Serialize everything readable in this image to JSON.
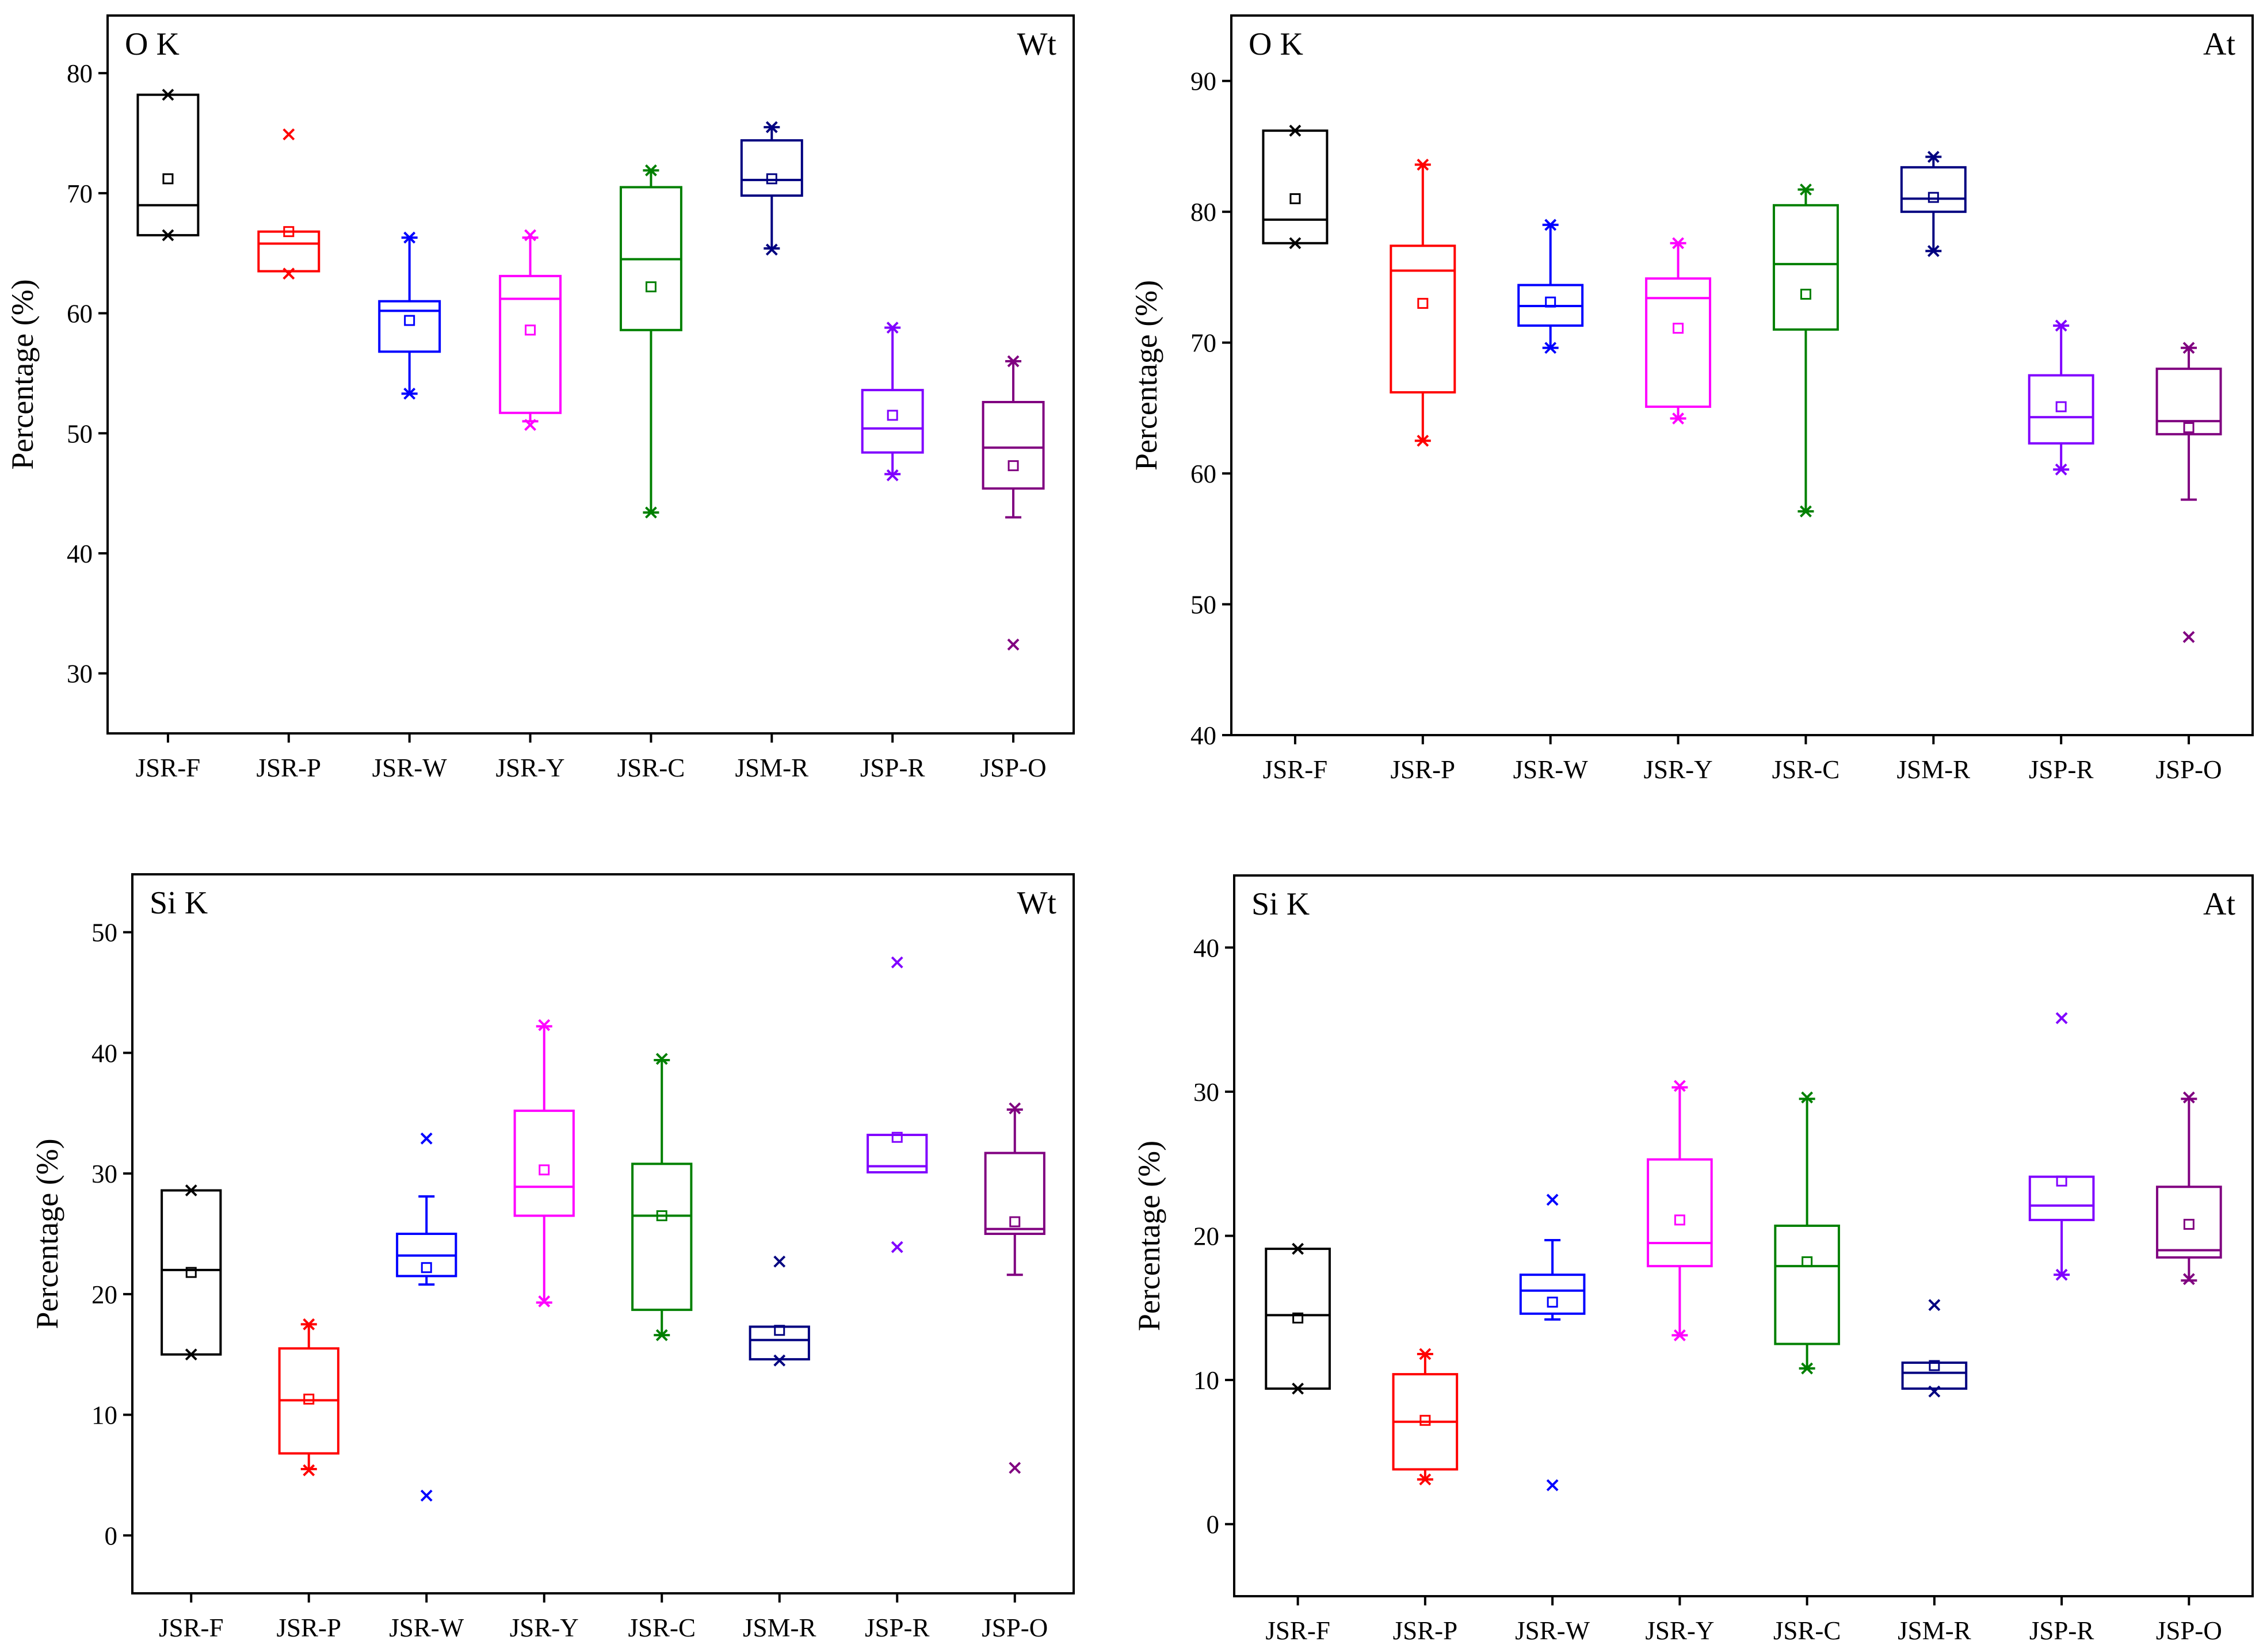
{
  "chart_data": [
    {
      "type": "box",
      "panel_label": "O K",
      "mode_label": "Wt",
      "ylabel": "Percentage (%)",
      "ylim": [
        25,
        84.8
      ],
      "yticks": [
        30,
        40,
        50,
        60,
        70,
        80
      ],
      "categories": [
        "JSR-F",
        "JSR-P",
        "JSR-W",
        "JSR-Y",
        "JSR-C",
        "JSM-R",
        "JSP-R",
        "JSP-O"
      ],
      "colors": [
        "#000000",
        "#ff0000",
        "#0000ff",
        "#ff00ff",
        "#008000",
        "#000080",
        "#8000ff",
        "#800080"
      ],
      "boxes": [
        {
          "q1": 66.5,
          "median": 69.0,
          "q3": 78.2,
          "whisker_low": null,
          "whisker_high": null,
          "mean": 71.2,
          "outliers": [
            78.2,
            66.5
          ]
        },
        {
          "q1": 63.5,
          "median": 65.8,
          "q3": 66.8,
          "whisker_low": null,
          "whisker_high": null,
          "mean": 66.8,
          "outliers": [
            74.9,
            63.3
          ]
        },
        {
          "q1": 56.8,
          "median": 60.2,
          "q3": 61.0,
          "whisker_low": 53.3,
          "whisker_high": 66.3,
          "mean": 59.4,
          "outliers": [
            66.3,
            53.3
          ]
        },
        {
          "q1": 51.7,
          "median": 61.2,
          "q3": 63.1,
          "whisker_low": 51.0,
          "whisker_high": 66.3,
          "mean": 58.6,
          "outliers": [
            66.5,
            50.7
          ]
        },
        {
          "q1": 58.6,
          "median": 64.5,
          "q3": 70.5,
          "whisker_low": 43.4,
          "whisker_high": 71.9,
          "mean": 62.2,
          "outliers": [
            71.9,
            43.4
          ]
        },
        {
          "q1": 69.8,
          "median": 71.1,
          "q3": 74.4,
          "whisker_low": 65.4,
          "whisker_high": 75.5,
          "mean": 71.2,
          "outliers": [
            75.5,
            65.3
          ]
        },
        {
          "q1": 48.4,
          "median": 50.4,
          "q3": 53.6,
          "whisker_low": 46.6,
          "whisker_high": 58.8,
          "mean": 51.5,
          "outliers": [
            58.8,
            46.5
          ]
        },
        {
          "q1": 45.4,
          "median": 48.8,
          "q3": 52.6,
          "whisker_low": 43.0,
          "whisker_high": 56.0,
          "mean": 47.3,
          "outliers": [
            56.0,
            32.4
          ]
        }
      ]
    },
    {
      "type": "box",
      "panel_label": "O K",
      "mode_label": "At",
      "ylabel": "Percentage (%)",
      "ylim": [
        40,
        95
      ],
      "yticks": [
        40,
        50,
        60,
        70,
        80,
        90
      ],
      "categories": [
        "JSR-F",
        "JSR-P",
        "JSR-W",
        "JSR-Y",
        "JSR-C",
        "JSM-R",
        "JSP-R",
        "JSP-O"
      ],
      "colors": [
        "#000000",
        "#ff0000",
        "#0000ff",
        "#ff00ff",
        "#008000",
        "#000080",
        "#8000ff",
        "#800080"
      ],
      "boxes": [
        {
          "q1": 77.6,
          "median": 79.4,
          "q3": 86.2,
          "whisker_low": null,
          "whisker_high": null,
          "mean": 81.0,
          "outliers": [
            86.2,
            77.6
          ]
        },
        {
          "q1": 66.2,
          "median": 75.5,
          "q3": 77.4,
          "whisker_low": 62.5,
          "whisker_high": 83.6,
          "mean": 73.0,
          "outliers": [
            83.6,
            62.5
          ]
        },
        {
          "q1": 71.3,
          "median": 72.8,
          "q3": 74.4,
          "whisker_low": 69.6,
          "whisker_high": 79.0,
          "mean": 73.1,
          "outliers": [
            79.0,
            69.6
          ]
        },
        {
          "q1": 65.1,
          "median": 73.4,
          "q3": 74.9,
          "whisker_low": 64.2,
          "whisker_high": 77.6,
          "mean": 71.1,
          "outliers": [
            77.6,
            64.2
          ]
        },
        {
          "q1": 71.0,
          "median": 76.0,
          "q3": 80.5,
          "whisker_low": 57.1,
          "whisker_high": 81.7,
          "mean": 73.7,
          "outliers": [
            81.7,
            57.1
          ]
        },
        {
          "q1": 80.0,
          "median": 81.0,
          "q3": 83.4,
          "whisker_low": 77.0,
          "whisker_high": 84.2,
          "mean": 81.1,
          "outliers": [
            84.2,
            77.0
          ]
        },
        {
          "q1": 62.3,
          "median": 64.3,
          "q3": 67.5,
          "whisker_low": 60.3,
          "whisker_high": 71.3,
          "mean": 65.1,
          "outliers": [
            71.3,
            60.3
          ]
        },
        {
          "q1": 63.0,
          "median": 64.0,
          "q3": 68.0,
          "whisker_low": 58.0,
          "whisker_high": 69.6,
          "mean": 63.5,
          "outliers": [
            69.6,
            47.5
          ]
        }
      ]
    },
    {
      "type": "box",
      "panel_label": "Si K",
      "mode_label": "Wt",
      "ylabel": "Percentage (%)",
      "ylim": [
        -4.8,
        54.8
      ],
      "yticks": [
        0,
        10,
        20,
        30,
        40,
        50
      ],
      "categories": [
        "JSR-F",
        "JSR-P",
        "JSR-W",
        "JSR-Y",
        "JSR-C",
        "JSM-R",
        "JSP-R",
        "JSP-O"
      ],
      "colors": [
        "#000000",
        "#ff0000",
        "#0000ff",
        "#ff00ff",
        "#008000",
        "#000080",
        "#8000ff",
        "#800080"
      ],
      "boxes": [
        {
          "q1": 15.0,
          "median": 22.0,
          "q3": 28.6,
          "whisker_low": null,
          "whisker_high": null,
          "mean": 21.8,
          "outliers": [
            28.6,
            15.0
          ]
        },
        {
          "q1": 6.8,
          "median": 11.2,
          "q3": 15.5,
          "whisker_low": 5.5,
          "whisker_high": 17.5,
          "mean": 11.3,
          "outliers": [
            17.5,
            5.4
          ]
        },
        {
          "q1": 21.5,
          "median": 23.2,
          "q3": 25.0,
          "whisker_low": 20.8,
          "whisker_high": 28.1,
          "mean": 22.2,
          "outliers": [
            32.9,
            3.3
          ]
        },
        {
          "q1": 26.5,
          "median": 28.9,
          "q3": 35.2,
          "whisker_low": 19.3,
          "whisker_high": 42.2,
          "mean": 30.3,
          "outliers": [
            42.3,
            19.4
          ]
        },
        {
          "q1": 18.7,
          "median": 26.5,
          "q3": 30.8,
          "whisker_low": 16.6,
          "whisker_high": 39.4,
          "mean": 26.5,
          "outliers": [
            39.5,
            16.6
          ]
        },
        {
          "q1": 14.6,
          "median": 16.2,
          "q3": 17.3,
          "whisker_low": null,
          "whisker_high": null,
          "mean": 17.0,
          "outliers": [
            22.7,
            14.5
          ]
        },
        {
          "q1": 30.1,
          "median": 30.6,
          "q3": 33.2,
          "whisker_low": null,
          "whisker_high": null,
          "mean": 33.0,
          "outliers": [
            47.5,
            23.9
          ]
        },
        {
          "q1": 25.0,
          "median": 25.4,
          "q3": 31.7,
          "whisker_low": 21.6,
          "whisker_high": 35.3,
          "mean": 26.0,
          "outliers": [
            35.4,
            5.6
          ]
        }
      ]
    },
    {
      "type": "box",
      "panel_label": "Si K",
      "mode_label": "At",
      "ylabel": "Percentage (%)",
      "ylim": [
        -5,
        45
      ],
      "yticks": [
        0,
        10,
        20,
        30,
        40
      ],
      "categories": [
        "JSR-F",
        "JSR-P",
        "JSR-W",
        "JSR-Y",
        "JSR-C",
        "JSM-R",
        "JSP-R",
        "JSP-O"
      ],
      "colors": [
        "#000000",
        "#ff0000",
        "#0000ff",
        "#ff00ff",
        "#008000",
        "#000080",
        "#8000ff",
        "#800080"
      ],
      "boxes": [
        {
          "q1": 9.4,
          "median": 14.5,
          "q3": 19.1,
          "whisker_low": null,
          "whisker_high": null,
          "mean": 14.3,
          "outliers": [
            19.1,
            9.4
          ]
        },
        {
          "q1": 3.8,
          "median": 7.1,
          "q3": 10.4,
          "whisker_low": 3.1,
          "whisker_high": 11.8,
          "mean": 7.2,
          "outliers": [
            11.8,
            3.1
          ]
        },
        {
          "q1": 14.6,
          "median": 16.2,
          "q3": 17.3,
          "whisker_low": 14.2,
          "whisker_high": 19.7,
          "mean": 15.4,
          "outliers": [
            22.5,
            2.7
          ]
        },
        {
          "q1": 17.9,
          "median": 19.5,
          "q3": 25.3,
          "whisker_low": 13.1,
          "whisker_high": 30.3,
          "mean": 21.1,
          "outliers": [
            30.4,
            13.1
          ]
        },
        {
          "q1": 12.5,
          "median": 17.9,
          "q3": 20.7,
          "whisker_low": 10.8,
          "whisker_high": 29.5,
          "mean": 18.2,
          "outliers": [
            29.6,
            10.8
          ]
        },
        {
          "q1": 9.4,
          "median": 10.5,
          "q3": 11.2,
          "whisker_low": null,
          "whisker_high": null,
          "mean": 11.0,
          "outliers": [
            15.2,
            9.2
          ]
        },
        {
          "q1": 21.1,
          "median": 22.1,
          "q3": 24.1,
          "whisker_low": 17.3,
          "whisker_high": null,
          "mean": 23.8,
          "outliers": [
            35.1,
            17.3
          ]
        },
        {
          "q1": 18.5,
          "median": 19.0,
          "q3": 23.4,
          "whisker_low": 16.9,
          "whisker_high": 29.5,
          "mean": 20.8,
          "outliers": [
            29.6,
            17.0
          ]
        }
      ]
    }
  ]
}
